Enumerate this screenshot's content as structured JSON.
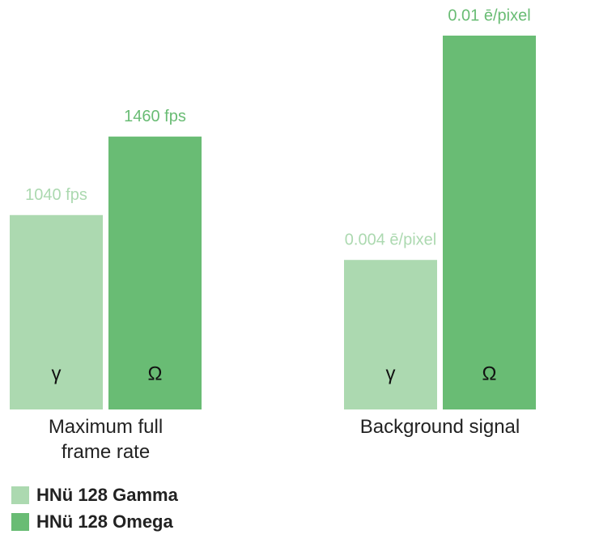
{
  "chart_data": [
    {
      "type": "bar",
      "title": "Maximum full frame rate",
      "categories": [
        "γ",
        "Ω"
      ],
      "values": [
        1040,
        1460
      ],
      "value_labels": [
        "1040 fps",
        "1460 fps"
      ],
      "ylim": [
        0,
        2000
      ]
    },
    {
      "type": "bar",
      "title": "Background signal",
      "categories": [
        "γ",
        "Ω"
      ],
      "values": [
        0.004,
        0.01
      ],
      "value_labels": [
        "0.004 ē/pixel",
        "0.01 ē/pixel"
      ],
      "ylim": [
        0,
        0.01
      ]
    }
  ],
  "legend": [
    {
      "name": "HNü 128 Gamma",
      "color": "#acd9b0"
    },
    {
      "name": "HNü 128 Omega",
      "color": "#69bc74"
    }
  ]
}
